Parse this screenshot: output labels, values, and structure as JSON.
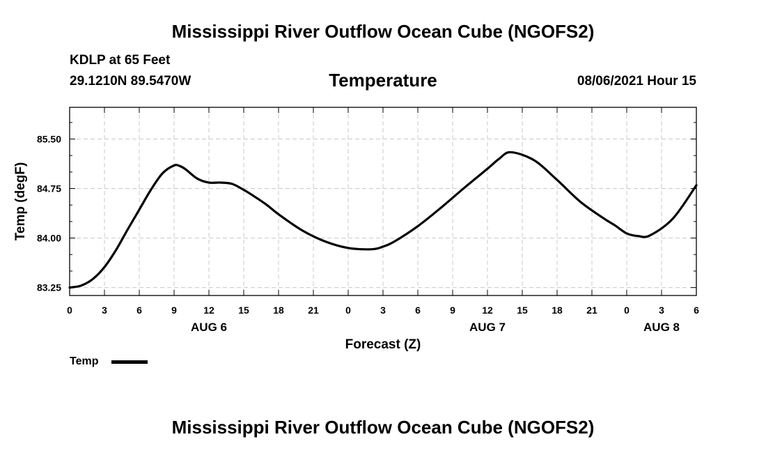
{
  "header": {
    "title": "Mississippi River Outflow Ocean Cube (NGOFS2)",
    "station": "KDLP at 65 Feet",
    "coords": "29.1210N  89.5470W",
    "subtitle": "Temperature",
    "datetime": "08/06/2021 Hour 15"
  },
  "footer": {
    "title": "Mississippi River Outflow Ocean Cube (NGOFS2)"
  },
  "legend": {
    "label": "Temp"
  },
  "chart_data": {
    "type": "line",
    "title": "Temperature",
    "xlabel": "Forecast (Z)",
    "ylabel": "Temp (degF)",
    "x_unit": "hours from 08/06/2021 00Z",
    "xlim": [
      -6,
      48
    ],
    "ylim": [
      83.13,
      85.98
    ],
    "grid": true,
    "x_ticks": [
      {
        "x": -6,
        "label": "0"
      },
      {
        "x": -3,
        "label": "3"
      },
      {
        "x": 0,
        "label": "6"
      },
      {
        "x": 3,
        "label": "9"
      },
      {
        "x": 6,
        "label": "12"
      },
      {
        "x": 9,
        "label": "15"
      },
      {
        "x": 12,
        "label": "18"
      },
      {
        "x": 15,
        "label": "21"
      },
      {
        "x": 18,
        "label": "0"
      },
      {
        "x": 21,
        "label": "3"
      },
      {
        "x": 24,
        "label": "6"
      },
      {
        "x": 27,
        "label": "9"
      },
      {
        "x": 30,
        "label": "12"
      },
      {
        "x": 33,
        "label": "15"
      },
      {
        "x": 36,
        "label": "18"
      },
      {
        "x": 39,
        "label": "21"
      },
      {
        "x": 42,
        "label": "0"
      },
      {
        "x": 45,
        "label": "3"
      },
      {
        "x": 48,
        "label": "6"
      }
    ],
    "day_labels": [
      {
        "x": 6,
        "label": "AUG 6"
      },
      {
        "x": 30,
        "label": "AUG 7"
      },
      {
        "x": 45,
        "label": "AUG 8"
      }
    ],
    "y_ticks": [
      {
        "y": 83.25,
        "label": "83.25"
      },
      {
        "y": 84.0,
        "label": "84.00"
      },
      {
        "y": 84.75,
        "label": "84.75"
      },
      {
        "y": 85.5,
        "label": "85.50"
      }
    ],
    "series": [
      {
        "name": "Temp",
        "x": [
          -6,
          -5,
          -4,
          -3,
          -2,
          -1,
          0,
          1,
          2,
          3,
          3.5,
          4,
          5,
          6,
          7,
          8,
          9,
          10,
          11,
          12,
          14,
          16,
          18,
          20,
          21,
          22,
          24,
          26,
          28,
          30,
          31,
          32,
          34,
          36,
          38,
          40,
          41,
          42,
          43,
          44,
          46,
          48
        ],
        "y": [
          83.25,
          83.28,
          83.38,
          83.56,
          83.82,
          84.13,
          84.43,
          84.73,
          84.98,
          85.1,
          85.09,
          85.04,
          84.9,
          84.84,
          84.84,
          84.82,
          84.73,
          84.62,
          84.5,
          84.36,
          84.12,
          83.95,
          83.85,
          83.83,
          83.87,
          83.95,
          84.18,
          84.46,
          84.76,
          85.05,
          85.2,
          85.3,
          85.18,
          84.88,
          84.55,
          84.3,
          84.19,
          84.07,
          84.03,
          84.04,
          84.3,
          84.8
        ]
      }
    ]
  }
}
